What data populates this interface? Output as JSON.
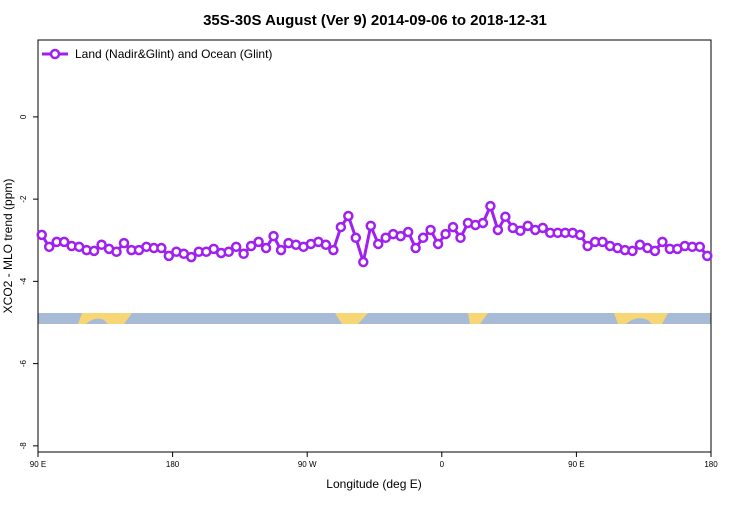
{
  "chart_data": {
    "type": "line",
    "title": "35S-30S August (Ver 9)   2014-09-06 to 2018-12-31",
    "x_label": "Longitude (deg E)",
    "y_label": "XCO2 - MLO trend (ppm)",
    "xlim": [
      90,
      540
    ],
    "xticks": [
      {
        "value": 90,
        "label": "90 E"
      },
      180,
      {
        "value": 270,
        "label": "90 W"
      },
      {
        "value": 360,
        "label": "0"
      },
      {
        "value": 450,
        "label": "90 E"
      },
      {
        "value": 540,
        "label": "180"
      }
    ],
    "ylim": [
      -8.15,
      1.87
    ],
    "yticks": [
      0,
      -2,
      -4,
      -6,
      -8
    ],
    "legend": "top-left",
    "x": [
      92.5,
      97.5,
      102.5,
      107.5,
      112.5,
      117.5,
      122.5,
      127.5,
      132.5,
      137.5,
      142.5,
      147.5,
      152.5,
      157.5,
      162.5,
      167.5,
      172.5,
      177.5,
      182.5,
      187.5,
      192.5,
      197.5,
      202.5,
      207.5,
      212.5,
      217.5,
      222.5,
      227.5,
      232.5,
      237.5,
      242.5,
      247.5,
      252.5,
      257.5,
      262.5,
      267.5,
      272.5,
      277.5,
      282.5,
      287.5,
      292.5,
      297.5,
      302.5,
      307.5,
      312.5,
      317.5,
      322.5,
      327.5,
      332.5,
      337.5,
      342.5,
      347.5,
      352.5,
      357.5,
      362.5,
      367.5,
      372.5,
      377.5,
      382.5,
      387.5,
      392.5,
      397.5,
      402.5,
      407.5,
      412.5,
      417.5,
      422.5,
      427.5,
      432.5,
      437.5,
      442.5,
      447.5,
      452.5,
      457.5,
      462.5,
      467.5,
      472.5,
      477.5,
      482.5,
      487.5,
      492.5,
      497.5,
      502.5,
      507.5,
      512.5,
      517.5,
      522.5,
      527.5,
      532.5,
      537.5
    ],
    "series": [
      {
        "name": "Land (Nadir&Glint) and Ocean (Glint)",
        "color": "#a020f0",
        "values": [
          -2.87,
          -3.16,
          -3.04,
          -3.04,
          -3.14,
          -3.16,
          -3.24,
          -3.26,
          -3.11,
          -3.21,
          -3.28,
          -3.07,
          -3.24,
          -3.24,
          -3.16,
          -3.19,
          -3.19,
          -3.38,
          -3.28,
          -3.33,
          -3.41,
          -3.28,
          -3.28,
          -3.21,
          -3.31,
          -3.28,
          -3.16,
          -3.33,
          -3.14,
          -3.04,
          -3.19,
          -2.9,
          -3.24,
          -3.07,
          -3.11,
          -3.16,
          -3.09,
          -3.04,
          -3.11,
          -3.24,
          -2.68,
          -2.41,
          -2.94,
          -3.53,
          -2.65,
          -3.09,
          -2.94,
          -2.85,
          -2.9,
          -2.8,
          -3.19,
          -2.94,
          -2.75,
          -3.09,
          -2.85,
          -2.68,
          -2.94,
          -2.58,
          -2.63,
          -2.58,
          -2.17,
          -2.75,
          -2.43,
          -2.7,
          -2.77,
          -2.65,
          -2.75,
          -2.7,
          -2.82,
          -2.82,
          -2.82,
          -2.82,
          -2.87,
          -3.14,
          -3.04,
          -3.04,
          -3.14,
          -3.19,
          -3.24,
          -3.26,
          -3.11,
          -3.19,
          -3.26,
          -3.04,
          -3.21,
          -3.21,
          -3.14,
          -3.16,
          -3.16,
          -3.38
        ]
      }
    ]
  }
}
